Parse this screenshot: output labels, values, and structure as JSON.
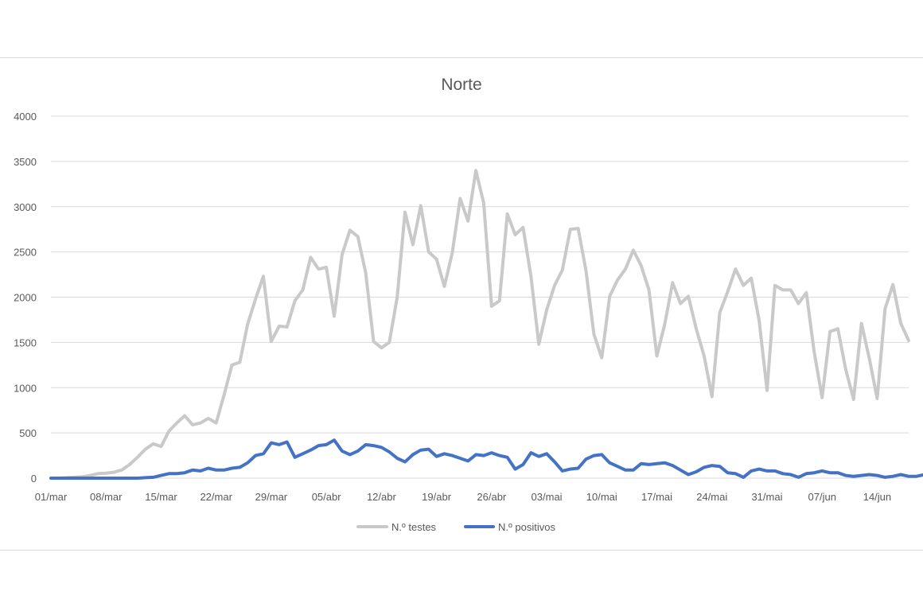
{
  "chart_data": {
    "type": "line",
    "title": "Norte",
    "xlabel": "",
    "ylabel": "",
    "ylim": [
      0,
      4000
    ],
    "yticks": [
      "0",
      "500",
      "1000",
      "1500",
      "2000",
      "2500",
      "3000",
      "3500",
      "4000"
    ],
    "xticks": [
      "01/mar",
      "08/mar",
      "15/mar",
      "22/mar",
      "29/mar",
      "05/abr",
      "12/abr",
      "19/abr",
      "26/abr",
      "03/mai",
      "10/mai",
      "17/mai",
      "24/mai",
      "31/mai",
      "07/jun",
      "14/jun"
    ],
    "grid": true,
    "legend_position": "bottom",
    "series": [
      {
        "name": "N.º testes",
        "color": "#c9c9c9",
        "values": [
          0,
          0,
          5,
          10,
          15,
          30,
          50,
          55,
          65,
          90,
          150,
          230,
          320,
          380,
          350,
          520,
          610,
          690,
          590,
          610,
          660,
          610,
          920,
          1250,
          1280,
          1700,
          1980,
          2230,
          1510,
          1680,
          1670,
          1960,
          2080,
          2440,
          2310,
          2330,
          1790,
          2470,
          2740,
          2670,
          2270,
          1510,
          1440,
          1500,
          2000,
          2940,
          2580,
          3010,
          2500,
          2420,
          2120,
          2490,
          3090,
          2840,
          3400,
          3040,
          1900,
          1960,
          2920,
          2690,
          2770,
          2230,
          1480,
          1860,
          2130,
          2300,
          2750,
          2760,
          2290,
          1590,
          1330,
          2010,
          2190,
          2310,
          2520,
          2350,
          2080,
          1350,
          1700,
          2160,
          1930,
          2010,
          1650,
          1350,
          900,
          1830,
          2060,
          2310,
          2130,
          2210,
          1740,
          970,
          2130,
          2080,
          2080,
          1930,
          2050,
          1390,
          890,
          1620,
          1650,
          1200,
          870,
          1710,
          1320,
          880,
          1870,
          2140,
          1710,
          1520
        ]
      },
      {
        "name": "N.º positivos",
        "color": "#4472c4",
        "values": [
          0,
          0,
          0,
          0,
          0,
          0,
          0,
          0,
          0,
          0,
          0,
          0,
          5,
          10,
          30,
          50,
          50,
          60,
          90,
          80,
          110,
          90,
          90,
          110,
          120,
          170,
          250,
          270,
          390,
          370,
          400,
          230,
          270,
          310,
          360,
          370,
          420,
          300,
          260,
          300,
          370,
          360,
          340,
          290,
          220,
          180,
          260,
          310,
          320,
          240,
          270,
          250,
          220,
          190,
          260,
          250,
          280,
          250,
          230,
          100,
          150,
          280,
          240,
          270,
          180,
          80,
          100,
          110,
          210,
          250,
          260,
          170,
          130,
          90,
          90,
          160,
          150,
          160,
          170,
          140,
          90,
          40,
          70,
          120,
          140,
          130,
          60,
          50,
          10,
          80,
          100,
          80,
          80,
          50,
          40,
          10,
          50,
          60,
          80,
          60,
          60,
          30,
          20,
          30,
          40,
          30,
          10,
          20,
          40,
          20,
          20,
          40,
          40,
          20
        ]
      }
    ]
  }
}
